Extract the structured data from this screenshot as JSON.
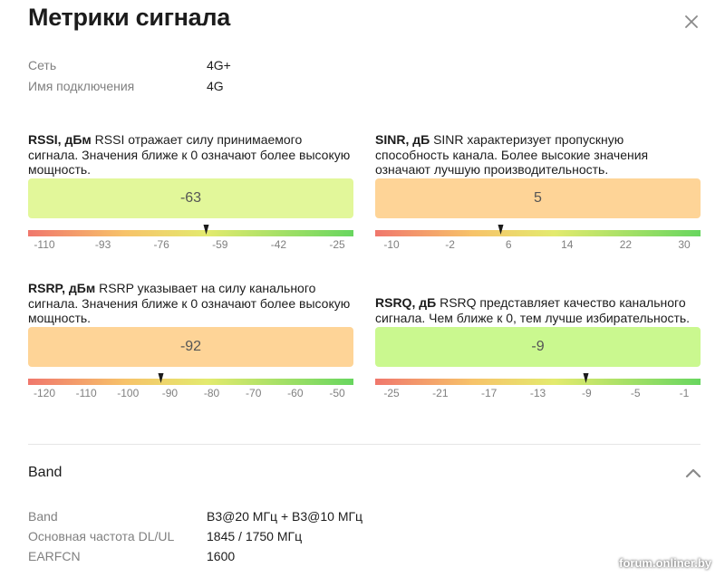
{
  "title": "Метрики сигнала",
  "close_icon": "close-icon",
  "info": [
    {
      "key": "Сеть",
      "value": "4G+"
    },
    {
      "key": "Имя подключения",
      "value": "4G"
    }
  ],
  "metrics": [
    {
      "name": "RSSI, дБм",
      "description": "RSSI отражает силу принимаемого сигнала. Значения ближе к 0 означают более высокую мощность.",
      "value": "-63",
      "box_color": "#e2f79a",
      "ticks": [
        "-110",
        "-93",
        "-76",
        "-59",
        "-42",
        "-25"
      ],
      "marker_value": -63
    },
    {
      "name": "SINR, дБ",
      "description": "SINR характеризует пропускную способность канала. Более высокие значения означают лучшую производительность.",
      "value": "5",
      "box_color": "#fed497",
      "ticks": [
        "-10",
        "-2",
        "6",
        "14",
        "22",
        "30"
      ],
      "marker_value": 5
    },
    {
      "name": "RSRP, дБм",
      "description": "RSRP указывает на силу канального сигнала. Значения ближе к 0 означают более высокую мощность.",
      "value": "-92",
      "box_color": "#fed497",
      "ticks": [
        "-120",
        "-110",
        "-100",
        "-90",
        "-80",
        "-70",
        "-60",
        "-50"
      ],
      "marker_value": -92
    },
    {
      "name": "RSRQ, дБ",
      "description": "RSRQ представляет качество канального сигнала. Чем ближе к 0, тем лучше избирательность.",
      "value": "-9",
      "box_color": "#caf88f",
      "ticks": [
        "-25",
        "-21",
        "-17",
        "-13",
        "-9",
        "-5",
        "-1"
      ],
      "marker_value": -9
    }
  ],
  "band": {
    "title": "Band",
    "chevron_icon": "chevron-up-icon",
    "rows": [
      {
        "key": "Band",
        "value": "B3@20 МГц + B3@10 МГц"
      },
      {
        "key": "Основная частота DL/UL",
        "value": "1845 / 1750 МГц"
      },
      {
        "key": "EARFCN",
        "value": "1600"
      }
    ]
  },
  "watermark": "forum.onliner.by"
}
